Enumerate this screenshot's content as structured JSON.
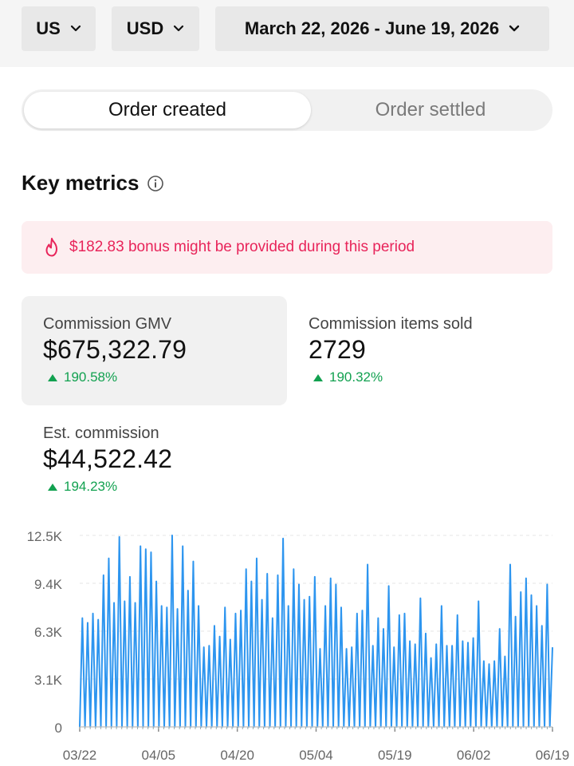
{
  "filters": {
    "region": "US",
    "currency": "USD",
    "date_range": "March 22, 2026 - June 19, 2026"
  },
  "tabs": {
    "active": "Order created",
    "inactive": "Order settled"
  },
  "section": {
    "title": "Key metrics"
  },
  "bonus_banner": {
    "text": "$182.83 bonus might be provided during this period"
  },
  "metrics": {
    "gmv": {
      "label": "Commission GMV",
      "value": "$675,322.79",
      "delta": "190.58%"
    },
    "items_sold": {
      "label": "Commission items sold",
      "value": "2729",
      "delta": "190.32%"
    },
    "est_commission": {
      "label": "Est. commission",
      "value": "$44,522.42",
      "delta": "194.23%"
    }
  },
  "colors": {
    "accent_green": "#12a150",
    "banner_red": "#e8245a",
    "line_blue": "#2d95ef"
  },
  "chart_data": {
    "type": "line",
    "ylim": [
      0,
      12500
    ],
    "y_ticks": [
      "0",
      "3.1K",
      "6.3K",
      "9.4K",
      "12.5K"
    ],
    "x_ticks": [
      "03/22",
      "04/05",
      "04/20",
      "05/04",
      "05/19",
      "06/02",
      "06/19"
    ],
    "series": [
      {
        "values": [
          0,
          7100,
          0,
          6800,
          0,
          7400,
          0,
          7000,
          0,
          9900,
          0,
          11000,
          0,
          8100,
          0,
          12400,
          0,
          8200,
          0,
          9800,
          0,
          8100,
          0,
          11800,
          0,
          11600,
          0,
          11400,
          0,
          9500,
          0,
          7900,
          0,
          7800,
          0,
          12500,
          0,
          7700,
          0,
          11800,
          0,
          8900,
          0,
          10800,
          0,
          7900,
          0,
          5200,
          0,
          5300,
          0,
          6600,
          0,
          5900,
          0,
          7800,
          0,
          5700,
          0,
          7400,
          0,
          7600,
          0,
          10300,
          0,
          9500,
          0,
          11000,
          0,
          8300,
          0,
          10000,
          0,
          7100,
          0,
          9900,
          0,
          12300,
          0,
          7900,
          0,
          10300,
          0,
          9300,
          0,
          8300,
          0,
          8500,
          0,
          9800,
          0,
          5100,
          0,
          7900,
          0,
          9700,
          0,
          9300,
          0,
          7800,
          0,
          5100,
          0,
          5200,
          0,
          7400,
          0,
          7600,
          0,
          10600,
          0,
          5300,
          0,
          7100,
          0,
          6400,
          0,
          9200,
          0,
          5200,
          0,
          7300,
          0,
          7400,
          0,
          5600,
          0,
          5400,
          0,
          8400,
          0,
          6100,
          0,
          4500,
          0,
          5400,
          0,
          7900,
          0,
          5300,
          0,
          5300,
          0,
          7300,
          0,
          5600,
          0,
          5500,
          0,
          5800,
          0,
          8200,
          0,
          4300,
          0,
          4100,
          0,
          4300,
          0,
          6400,
          0,
          4600,
          0,
          10600,
          0,
          7200,
          0,
          8800,
          0,
          9700,
          0,
          8600,
          0,
          7900,
          0,
          6600,
          0,
          9300,
          0,
          5200
        ]
      }
    ]
  }
}
